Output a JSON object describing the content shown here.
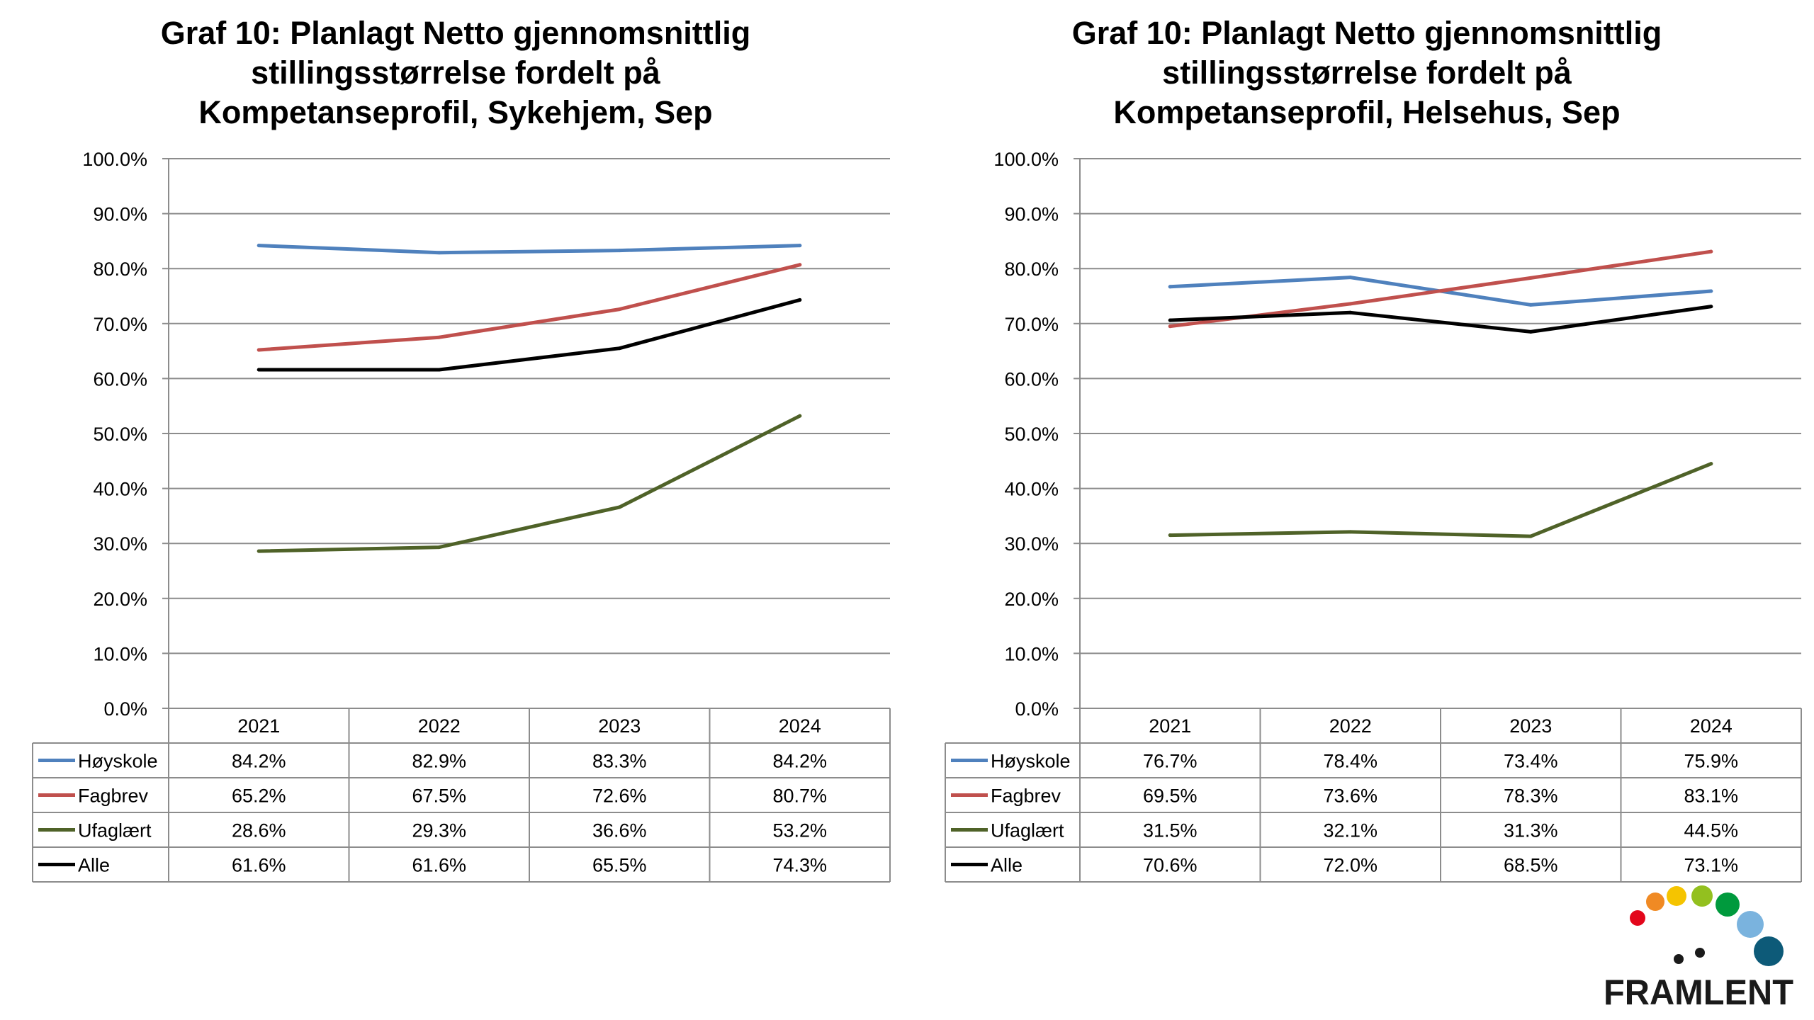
{
  "chart_data": [
    {
      "type": "line",
      "title": "Graf 10: Planlagt Netto gjennomsnittlig stillingsstørrelse fordelt på Kompetanseprofil, Sykehjem, Sep",
      "title_lines": [
        "Graf 10: Planlagt Netto gjennomsnittlig",
        "stillingsstørrelse fordelt på",
        "Kompetanseprofil, Sykehjem, Sep"
      ],
      "categories": [
        "2021",
        "2022",
        "2023",
        "2024"
      ],
      "ylim": [
        0,
        100
      ],
      "y_ticks": [
        0,
        10,
        20,
        30,
        40,
        50,
        60,
        70,
        80,
        90,
        100
      ],
      "y_tick_labels": [
        "0.0%",
        "10.0%",
        "20.0%",
        "30.0%",
        "40.0%",
        "50.0%",
        "60.0%",
        "70.0%",
        "80.0%",
        "90.0%",
        "100.0%"
      ],
      "grid": true,
      "legend": "data-table",
      "series": [
        {
          "name": "Høyskole",
          "color": "#4F81BD",
          "values": [
            84.2,
            82.9,
            83.3,
            84.2
          ],
          "labels": [
            "84.2%",
            "82.9%",
            "83.3%",
            "84.2%"
          ]
        },
        {
          "name": "Fagbrev",
          "color": "#C0504D",
          "values": [
            65.2,
            67.5,
            72.6,
            80.7
          ],
          "labels": [
            "65.2%",
            "67.5%",
            "72.6%",
            "80.7%"
          ]
        },
        {
          "name": "Ufaglært",
          "color": "#4F6228",
          "values": [
            28.6,
            29.3,
            36.6,
            53.2
          ],
          "labels": [
            "28.6%",
            "29.3%",
            "36.6%",
            "53.2%"
          ]
        },
        {
          "name": "Alle",
          "color": "#000000",
          "values": [
            61.6,
            61.6,
            65.5,
            74.3
          ],
          "labels": [
            "61.6%",
            "61.6%",
            "65.5%",
            "74.3%"
          ]
        }
      ]
    },
    {
      "type": "line",
      "title": "Graf 10: Planlagt Netto gjennomsnittlig stillingsstørrelse fordelt på Kompetanseprofil, Helsehus, Sep",
      "title_lines": [
        "Graf 10: Planlagt Netto gjennomsnittlig",
        "stillingsstørrelse fordelt på",
        "Kompetanseprofil, Helsehus, Sep"
      ],
      "categories": [
        "2021",
        "2022",
        "2023",
        "2024"
      ],
      "ylim": [
        0,
        100
      ],
      "y_ticks": [
        0,
        10,
        20,
        30,
        40,
        50,
        60,
        70,
        80,
        90,
        100
      ],
      "y_tick_labels": [
        "0.0%",
        "10.0%",
        "20.0%",
        "30.0%",
        "40.0%",
        "50.0%",
        "60.0%",
        "70.0%",
        "80.0%",
        "90.0%",
        "100.0%"
      ],
      "grid": true,
      "legend": "data-table",
      "series": [
        {
          "name": "Høyskole",
          "color": "#4F81BD",
          "values": [
            76.7,
            78.4,
            73.4,
            75.9
          ],
          "labels": [
            "76.7%",
            "78.4%",
            "73.4%",
            "75.9%"
          ]
        },
        {
          "name": "Fagbrev",
          "color": "#C0504D",
          "values": [
            69.5,
            73.6,
            78.3,
            83.1
          ],
          "labels": [
            "69.5%",
            "73.6%",
            "78.3%",
            "83.1%"
          ]
        },
        {
          "name": "Ufaglært",
          "color": "#4F6228",
          "values": [
            31.5,
            32.1,
            31.3,
            44.5
          ],
          "labels": [
            "31.5%",
            "32.1%",
            "31.3%",
            "44.5%"
          ]
        },
        {
          "name": "Alle",
          "color": "#000000",
          "values": [
            70.6,
            72.0,
            68.5,
            73.1
          ],
          "labels": [
            "70.6%",
            "72.0%",
            "68.5%",
            "73.1%"
          ]
        }
      ]
    }
  ],
  "logo": {
    "text": "FRAMLENT",
    "dot_colors": [
      "#E3061B",
      "#F08A24",
      "#F5C400",
      "#93C01F",
      "#009A3D",
      "#7AB3DE",
      "#0D5A78"
    ]
  }
}
